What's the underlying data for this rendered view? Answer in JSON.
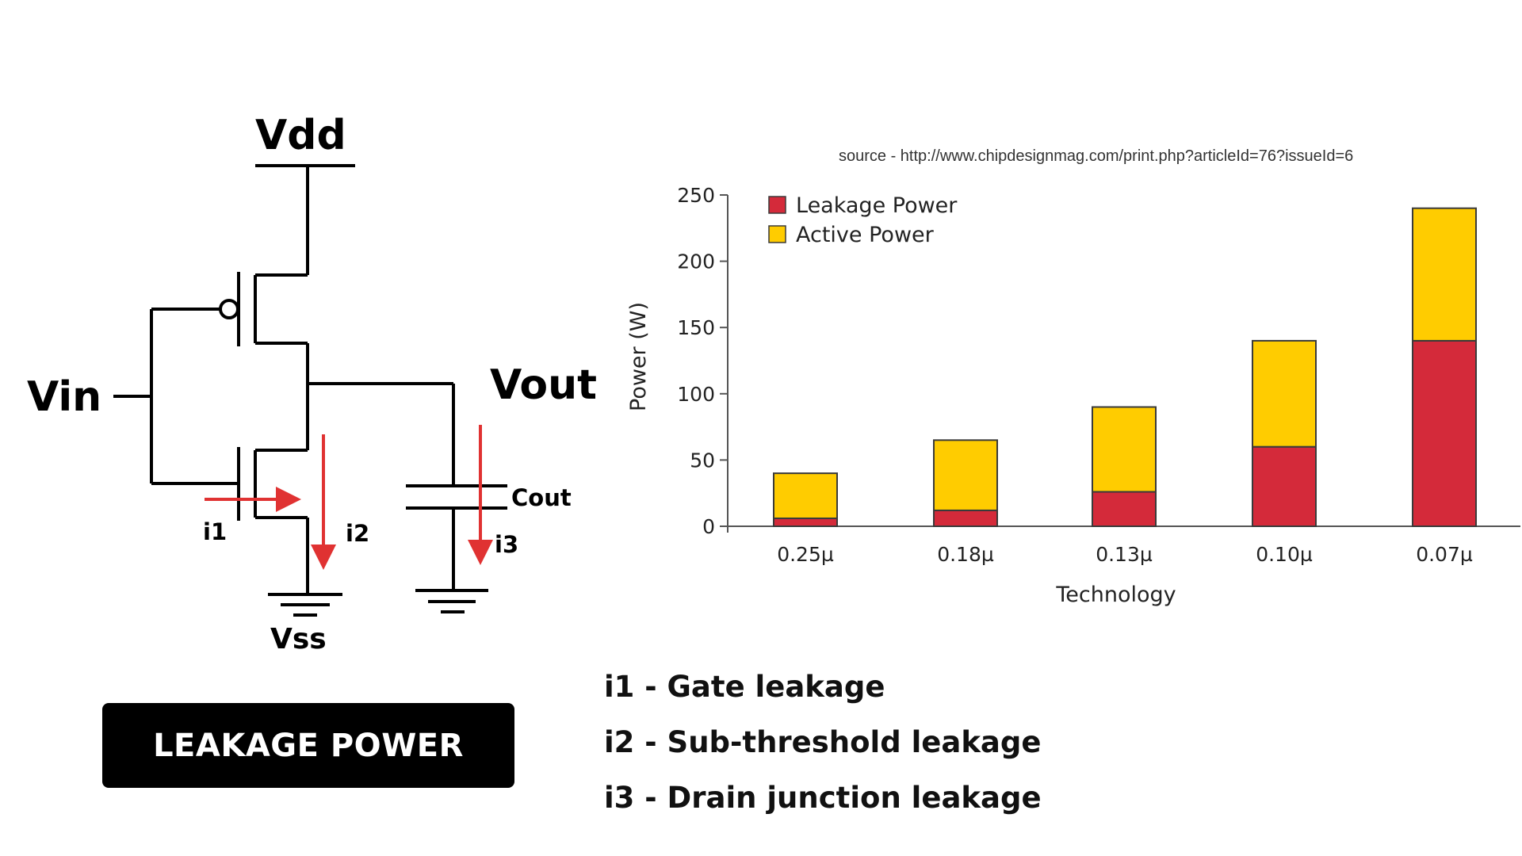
{
  "circuit": {
    "vdd_label": "Vdd",
    "vss_label": "Vss",
    "vin_label": "Vin",
    "vout_label": "Vout",
    "cout_label": "Cout",
    "i1_label": "i1",
    "i2_label": "i2",
    "i3_label": "i3",
    "current_arrow_color": "#e03232"
  },
  "title_box": {
    "label": "LEAKAGE POWER"
  },
  "leakage_types": [
    "i1 - Gate leakage",
    "i2 - Sub-threshold leakage",
    "i3 - Drain junction leakage"
  ],
  "source_note": "source - http://www.chipdesignmag.com/print.php?articleId=76?issueId=6",
  "chart_data": {
    "type": "bar",
    "stacked": true,
    "categories": [
      "0.25µ",
      "0.18µ",
      "0.13µ",
      "0.10µ",
      "0.07µ"
    ],
    "series": [
      {
        "name": "Leakage Power",
        "color": "#d42a3a",
        "values": [
          6,
          12,
          26,
          60,
          140
        ]
      },
      {
        "name": "Active Power",
        "color": "#ffcc00",
        "values": [
          34,
          53,
          64,
          80,
          100
        ]
      }
    ],
    "xlabel": "Technology",
    "ylabel": "Power (W)",
    "ylim": [
      0,
      250
    ],
    "yticks": [
      0,
      50,
      100,
      150,
      200,
      250
    ],
    "legend_position": "top-left",
    "grid": false
  }
}
